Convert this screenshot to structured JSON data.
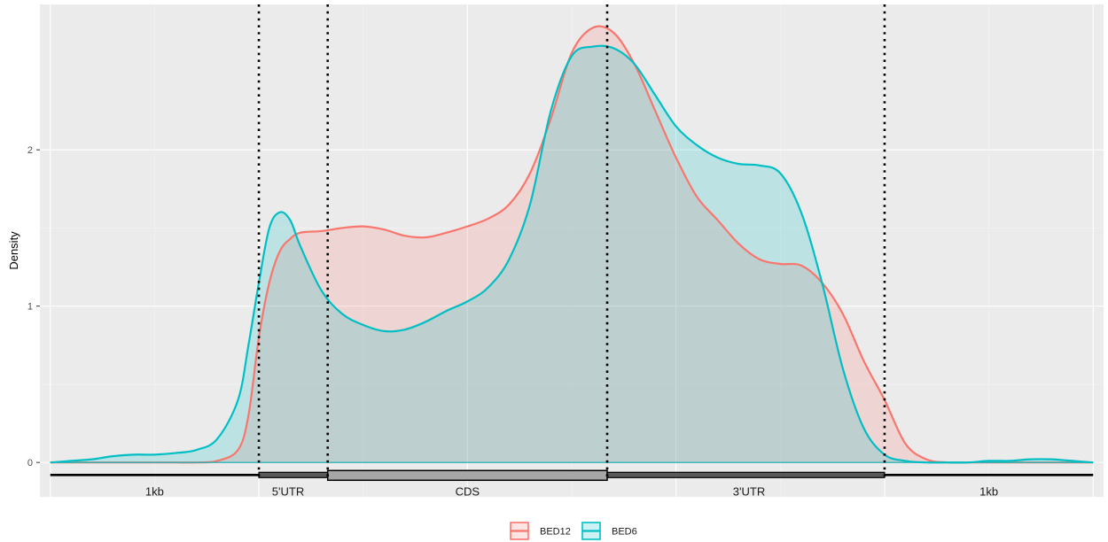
{
  "chart_data": {
    "type": "area",
    "title": "",
    "xlabel": "",
    "ylabel": "Density",
    "ylim": [
      -0.22,
      2.93
    ],
    "xlim": [
      -0.05,
      5.05
    ],
    "y_ticks": [
      0,
      1,
      2
    ],
    "grid": true,
    "legend_position": "bottom",
    "boundaries": [
      1.0,
      1.33,
      2.67,
      4.0
    ],
    "gene_regions": [
      {
        "name": "1kb",
        "start": 0.0,
        "end": 1.0,
        "style": "line",
        "label_x": 0.5
      },
      {
        "name": "5'UTR",
        "start": 1.0,
        "end": 1.33,
        "style": "thin-box",
        "label_x": 1.14
      },
      {
        "name": "CDS",
        "start": 1.33,
        "end": 2.67,
        "style": "thick-box",
        "label_x": 2.0
      },
      {
        "name": "3'UTR",
        "start": 2.67,
        "end": 4.0,
        "style": "thin-box",
        "label_x": 3.35
      },
      {
        "name": "1kb",
        "start": 4.0,
        "end": 5.0,
        "style": "line",
        "label_x": 4.5
      }
    ],
    "x": [
      0.0,
      0.1,
      0.2,
      0.3,
      0.4,
      0.5,
      0.6,
      0.7,
      0.8,
      0.9,
      0.95,
      1.0,
      1.05,
      1.1,
      1.15,
      1.2,
      1.3,
      1.4,
      1.5,
      1.6,
      1.7,
      1.8,
      1.9,
      2.0,
      2.1,
      2.2,
      2.3,
      2.4,
      2.5,
      2.6,
      2.7,
      2.8,
      2.9,
      3.0,
      3.1,
      3.2,
      3.3,
      3.4,
      3.5,
      3.6,
      3.7,
      3.8,
      3.9,
      4.0,
      4.1,
      4.2,
      4.3,
      4.4,
      4.5,
      4.6,
      4.7,
      4.8,
      4.9,
      5.0
    ],
    "series": [
      {
        "name": "BED12",
        "color": "#F8766D",
        "values": [
          0.0,
          0.0,
          0.0,
          0.0,
          0.0,
          0.0,
          0.0,
          0.0,
          0.01,
          0.08,
          0.3,
          0.8,
          1.15,
          1.35,
          1.43,
          1.47,
          1.48,
          1.5,
          1.51,
          1.49,
          1.45,
          1.44,
          1.47,
          1.51,
          1.56,
          1.65,
          1.85,
          2.2,
          2.62,
          2.78,
          2.75,
          2.55,
          2.25,
          1.95,
          1.7,
          1.55,
          1.4,
          1.3,
          1.27,
          1.26,
          1.15,
          0.95,
          0.65,
          0.4,
          0.12,
          0.02,
          0.0,
          0.0,
          0.0,
          0.0,
          0.0,
          0.0,
          0.0,
          0.0
        ]
      },
      {
        "name": "BED6",
        "color": "#00BFC4",
        "values": [
          0.0,
          0.01,
          0.02,
          0.04,
          0.05,
          0.05,
          0.06,
          0.08,
          0.15,
          0.4,
          0.75,
          1.15,
          1.5,
          1.6,
          1.55,
          1.38,
          1.1,
          0.95,
          0.88,
          0.84,
          0.85,
          0.9,
          0.97,
          1.03,
          1.12,
          1.3,
          1.65,
          2.25,
          2.6,
          2.66,
          2.65,
          2.55,
          2.35,
          2.15,
          2.03,
          1.95,
          1.91,
          1.9,
          1.85,
          1.6,
          1.15,
          0.6,
          0.22,
          0.05,
          0.01,
          0.0,
          0.0,
          0.0,
          0.01,
          0.01,
          0.02,
          0.02,
          0.01,
          0.0
        ]
      }
    ]
  }
}
